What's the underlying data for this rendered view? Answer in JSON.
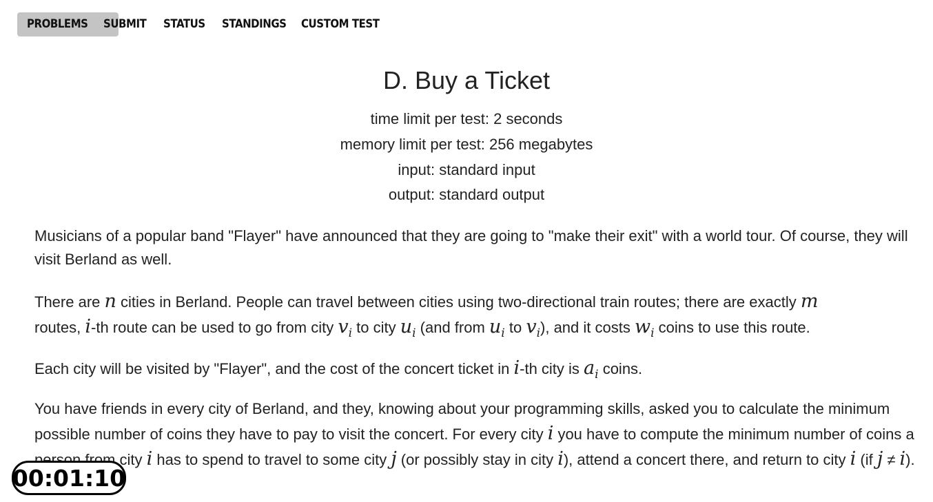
{
  "nav": {
    "items": [
      "PROBLEMS",
      "SUBMIT",
      "STATUS",
      "STANDINGS",
      "CUSTOM TEST"
    ],
    "active": "PROBLEMS"
  },
  "problem": {
    "title": "D. Buy a Ticket",
    "time_limit": "time limit per test: 2 seconds",
    "memory_limit": "memory limit per test: 256 megabytes",
    "input": "input: standard input",
    "output": "output: standard output"
  },
  "statement": {
    "p1": "Musicians of a popular band \"Flayer\" have announced that they are going to \"make their exit\" with a world tour. Of course, they will visit Berland as well.",
    "p2": {
      "a": "There are ",
      "n": "n",
      "b": " cities in Berland. People can travel between cities using two-directional train routes; there are exactly ",
      "m": "m",
      "c": " routes, ",
      "i1": "i",
      "d": "-th route can be used to go from city ",
      "v": "v",
      "vi": "i",
      "e": " to city ",
      "u": "u",
      "ui": "i",
      "f": " (and from ",
      "u2": "u",
      "u2i": "i",
      "g": " to ",
      "v2": "v",
      "v2i": "i",
      "h": "), and it costs ",
      "w": "w",
      "wi": "i",
      "k": " coins to use this route."
    },
    "p3": {
      "a": "Each city will be visited by \"Flayer\", and the cost of the concert ticket in ",
      "i": "i",
      "b": "-th city is ",
      "av": "a",
      "ai": "i",
      "c": " coins."
    },
    "p4": {
      "a": "You have friends in every city of Berland, and they, knowing about your programming skills, asked you to calculate the minimum possible number of coins they have to pay to visit the concert. For every city ",
      "i1": "i",
      "b": " you have to compute the minimum number of coins a person from city ",
      "i2": "i",
      "c": " has to spend to travel to some city ",
      "j1": "j",
      "d": " (or possibly stay in city ",
      "i3": "i",
      "e": "), attend a concert there, and return to city ",
      "i4": "i",
      "f": " (if ",
      "j2": "j",
      "neq": " ≠ ",
      "i5": "i",
      "g": ")."
    }
  },
  "timer": "00:01:10"
}
